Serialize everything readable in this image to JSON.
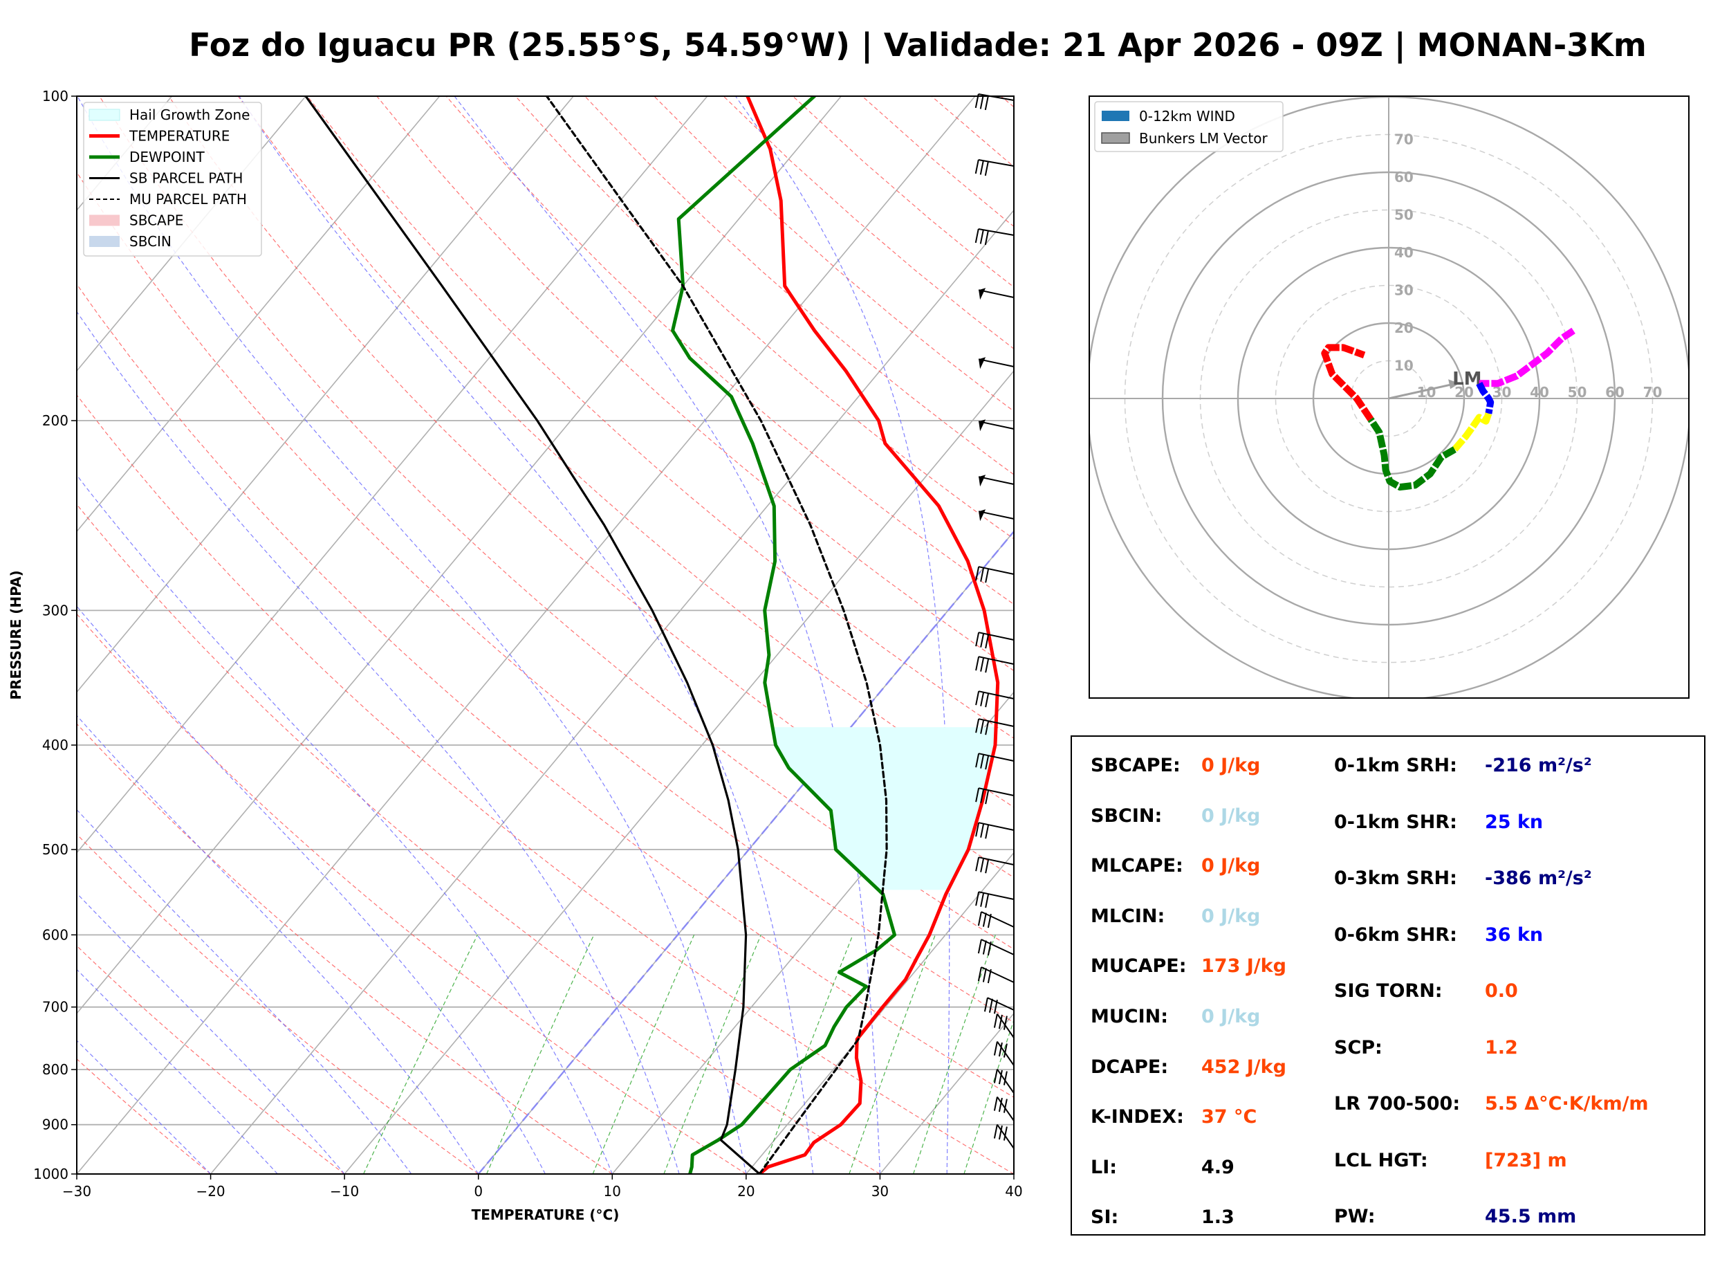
{
  "title": "Foz do Iguacu PR (25.55°S, 54.59°W) | Validade: 21 Apr 2026 - 09Z | MONAN-3Km",
  "chart_data": [
    {
      "type": "line",
      "subtype": "skew-T log-P sounding",
      "xlabel": "TEMPERATURE (°C)",
      "ylabel": "PRESSURE (HPA)",
      "xlim": [
        -30,
        40
      ],
      "ylim": [
        1000,
        100
      ],
      "x_ticks": [
        "−30",
        "−20",
        "−10",
        "0",
        "10",
        "20",
        "30",
        "40"
      ],
      "y_ticks": [
        "1000",
        "900",
        "800",
        "700",
        "600",
        "500",
        "400",
        "300",
        "200",
        "100"
      ],
      "legend_position": "top-left",
      "legend": [
        {
          "label": "Hail Growth Zone",
          "color": "#e0ffff"
        },
        {
          "label": "TEMPERATURE",
          "color": "#ff0000"
        },
        {
          "label": "DEWPOINT",
          "color": "#008000"
        },
        {
          "label": "SB PARCEL PATH",
          "color": "#000000"
        },
        {
          "label": "MU PARCEL PATH",
          "color": "#000000"
        },
        {
          "label": "SBCAPE",
          "color": "#f8c8cc"
        },
        {
          "label": "SBCIN",
          "color": "#c8d8ec"
        }
      ],
      "series": [
        {
          "name": "TEMPERATURE",
          "color": "#ff0000",
          "points": [
            [
              1000,
              21.0
            ],
            [
              985,
              21.2
            ],
            [
              960,
              23.2
            ],
            [
              935,
              23.1
            ],
            [
              900,
              24.0
            ],
            [
              860,
              24.1
            ],
            [
              820,
              22.8
            ],
            [
              780,
              21.0
            ],
            [
              750,
              19.9
            ],
            [
              700,
              19.8
            ],
            [
              660,
              19.8
            ],
            [
              630,
              19.3
            ],
            [
              600,
              18.8
            ],
            [
              550,
              17.5
            ],
            [
              500,
              16.4
            ],
            [
              450,
              14.4
            ],
            [
              400,
              11.9
            ],
            [
              350,
              8.2
            ],
            [
              300,
              2.7
            ],
            [
              270,
              -1.6
            ],
            [
              240,
              -7.2
            ],
            [
              210,
              -15.1
            ],
            [
              200,
              -17.0
            ],
            [
              180,
              -22.5
            ],
            [
              165,
              -27.4
            ],
            [
              150,
              -32.4
            ],
            [
              125,
              -38.0
            ],
            [
              112,
              -42.0
            ],
            [
              100,
              -47.0
            ]
          ]
        },
        {
          "name": "DEWPOINT",
          "color": "#008000",
          "points": [
            [
              1000,
              15.8
            ],
            [
              985,
              15.5
            ],
            [
              960,
              14.8
            ],
            [
              930,
              15.8
            ],
            [
              900,
              16.6
            ],
            [
              850,
              16.7
            ],
            [
              800,
              16.8
            ],
            [
              760,
              17.9
            ],
            [
              730,
              17.4
            ],
            [
              700,
              17.1
            ],
            [
              670,
              17.3
            ],
            [
              650,
              14.4
            ],
            [
              620,
              15.8
            ],
            [
              600,
              16.2
            ],
            [
              550,
              12.8
            ],
            [
              500,
              6.5
            ],
            [
              460,
              3.7
            ],
            [
              420,
              -2.1
            ],
            [
              400,
              -4.5
            ],
            [
              350,
              -9.2
            ],
            [
              330,
              -10.6
            ],
            [
              300,
              -13.7
            ],
            [
              270,
              -16.0
            ],
            [
              240,
              -19.5
            ],
            [
              210,
              -25.0
            ],
            [
              190,
              -29.5
            ],
            [
              175,
              -35.0
            ],
            [
              165,
              -38.0
            ],
            [
              150,
              -40.0
            ],
            [
              130,
              -44.5
            ],
            [
              100,
              -42.0
            ]
          ]
        },
        {
          "name": "SB PARCEL PATH",
          "color": "#000000",
          "points": [
            [
              1000,
              21.0
            ],
            [
              930,
              16.0
            ],
            [
              900,
              15.5
            ],
            [
              800,
              12.7
            ],
            [
              700,
              9.4
            ],
            [
              600,
              5.1
            ],
            [
              500,
              -0.8
            ],
            [
              450,
              -4.6
            ],
            [
              400,
              -9.2
            ],
            [
              350,
              -15.0
            ],
            [
              300,
              -22.1
            ],
            [
              250,
              -31.0
            ],
            [
              200,
              -42.5
            ],
            [
              150,
              -58.0
            ],
            [
              100,
              -80.0
            ]
          ]
        },
        {
          "name": "MU PARCEL PATH",
          "color": "#000000",
          "points": [
            [
              1000,
              21.0
            ],
            [
              900,
              20.6
            ],
            [
              800,
              20.2
            ],
            [
              750,
              20.0
            ],
            [
              700,
              18.5
            ],
            [
              600,
              15.0
            ],
            [
              500,
              10.3
            ],
            [
              450,
              7.2
            ],
            [
              400,
              3.3
            ],
            [
              350,
              -1.6
            ],
            [
              300,
              -7.8
            ],
            [
              250,
              -15.6
            ],
            [
              200,
              -25.8
            ],
            [
              150,
              -40.0
            ],
            [
              100,
              -62.0
            ]
          ]
        }
      ],
      "hail_growth_zone_hpa": [
        385,
        545
      ]
    },
    {
      "type": "line",
      "subtype": "hodograph",
      "legend_position": "top-left",
      "ring_labels": [
        "10",
        "20",
        "30",
        "40",
        "50",
        "60",
        "70"
      ],
      "legend": [
        {
          "label": "0-12km WIND",
          "color": "#1f77b4"
        },
        {
          "label": "Bunkers LM Vector",
          "color": "#a0a0a0"
        }
      ],
      "lm_label": "LM",
      "bunkers_lm": [
        18,
        4
      ],
      "segments": [
        {
          "color": "#ff00ff",
          "points": [
            [
              49,
              18
            ],
            [
              46,
              16
            ],
            [
              42,
              12
            ],
            [
              38,
              9
            ],
            [
              34,
              6
            ],
            [
              29,
              4
            ],
            [
              26,
              4
            ],
            [
              24,
              4
            ]
          ]
        },
        {
          "color": "#0000ff",
          "points": [
            [
              24,
              4
            ],
            [
              25,
              2
            ],
            [
              26.5,
              0
            ],
            [
              27,
              -1
            ],
            [
              26.5,
              -4
            ]
          ]
        },
        {
          "color": "#ffff00",
          "points": [
            [
              26.5,
              -4
            ],
            [
              25.8,
              -6
            ],
            [
              24,
              -5
            ],
            [
              22.3,
              -7.5
            ],
            [
              20.5,
              -10
            ],
            [
              17.5,
              -13.5
            ]
          ]
        },
        {
          "color": "#008000",
          "points": [
            [
              17.5,
              -13.5
            ],
            [
              14,
              -15.5
            ],
            [
              11,
              -20
            ],
            [
              7,
              -23
            ],
            [
              3,
              -23.5
            ],
            [
              0.3,
              -22
            ],
            [
              -0.8,
              -19
            ],
            [
              -1.2,
              -15
            ],
            [
              -2.5,
              -9
            ],
            [
              -4.8,
              -5.5
            ]
          ]
        },
        {
          "color": "#ff0000",
          "points": [
            [
              -4.8,
              -5.5
            ],
            [
              -8.5,
              0
            ],
            [
              -15,
              6.5
            ],
            [
              -17,
              12
            ],
            [
              -16,
              13.5
            ],
            [
              -12,
              13.5
            ],
            [
              -6.5,
              11.5
            ]
          ]
        }
      ]
    }
  ],
  "indices": [
    {
      "label": "SBCAPE:",
      "value": "0 J/kg",
      "color": "#ff4500"
    },
    {
      "label": "SBCIN:",
      "value": "0 J/kg",
      "color": "#add8e6"
    },
    {
      "label": "MLCAPE:",
      "value": "0 J/kg",
      "color": "#ff4500"
    },
    {
      "label": "MLCIN:",
      "value": "0 J/kg",
      "color": "#add8e6"
    },
    {
      "label": "MUCAPE:",
      "value": "173 J/kg",
      "color": "#ff4500"
    },
    {
      "label": "MUCIN:",
      "value": "0 J/kg",
      "color": "#add8e6"
    },
    {
      "label": "DCAPE:",
      "value": "452 J/kg",
      "color": "#ff4500"
    },
    {
      "label": "K-INDEX:",
      "value": "37 °C",
      "color": "#ff4500"
    },
    {
      "label": "LI:",
      "value": "4.9",
      "color": "#000000"
    },
    {
      "label": "SI:",
      "value": "1.3",
      "color": "#000000"
    },
    {
      "label": "0-1km SRH:",
      "value": "-216 m²/s²",
      "color": "#000080"
    },
    {
      "label": "0-1km SHR:",
      "value": "25 kn",
      "color": "#0000ff"
    },
    {
      "label": "0-3km SRH:",
      "value": "-386 m²/s²",
      "color": "#000080"
    },
    {
      "label": "0-6km SHR:",
      "value": "36 kn",
      "color": "#0000ff"
    },
    {
      "label": "SIG TORN:",
      "value": "0.0",
      "color": "#ff4500"
    },
    {
      "label": "SCP:",
      "value": "1.2",
      "color": "#ff4500"
    },
    {
      "label": "LR 700-500:",
      "value": "5.5 Δ°C·K/km/m",
      "color": "#ff4500"
    },
    {
      "label": "LCL HGT:",
      "value": "[723] m",
      "color": "#ff4500"
    },
    {
      "label": "PW:",
      "value": "45.5 mm",
      "color": "#000080"
    }
  ]
}
